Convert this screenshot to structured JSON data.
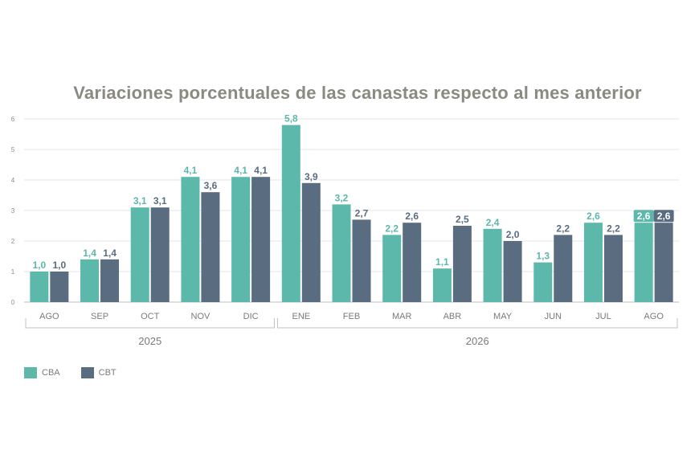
{
  "chart_data": {
    "type": "bar",
    "title": "Variaciones porcentuales de las canastas respecto al mes anterior",
    "categories": [
      "AGO",
      "SEP",
      "OCT",
      "NOV",
      "DIC",
      "ENE",
      "FEB",
      "MAR",
      "ABR",
      "MAY",
      "JUN",
      "JUL",
      "AGO"
    ],
    "year_groups": [
      {
        "label": "2025",
        "from": 0,
        "to": 4
      },
      {
        "label": "2026",
        "from": 5,
        "to": 12
      }
    ],
    "series": [
      {
        "name": "CBA",
        "color": "#5cb8ab",
        "values": [
          1.0,
          1.4,
          3.1,
          4.1,
          4.1,
          5.8,
          3.2,
          2.2,
          1.1,
          2.4,
          1.3,
          2.6,
          2.6
        ],
        "labels": [
          "1,0",
          "1,4",
          "3,1",
          "4,1",
          "4,1",
          "5,8",
          "3,2",
          "2,2",
          "1,1",
          "2,4",
          "1,3",
          "2,6",
          "2,6"
        ]
      },
      {
        "name": "CBT",
        "color": "#5a6c80",
        "values": [
          1.0,
          1.4,
          3.1,
          3.6,
          4.1,
          3.9,
          2.7,
          2.6,
          2.5,
          2.0,
          2.2,
          2.2,
          2.6
        ],
        "labels": [
          "1,0",
          "1,4",
          "3,1",
          "3,6",
          "4,1",
          "3,9",
          "2,7",
          "2,6",
          "2,5",
          "2,0",
          "2,2",
          "2,2",
          "2,6"
        ]
      }
    ],
    "yticks": [
      "0",
      "1",
      "2",
      "3",
      "4",
      "5",
      "6"
    ],
    "ylim": [
      0,
      6
    ],
    "grid": true,
    "legend_position": "bottom-left"
  }
}
